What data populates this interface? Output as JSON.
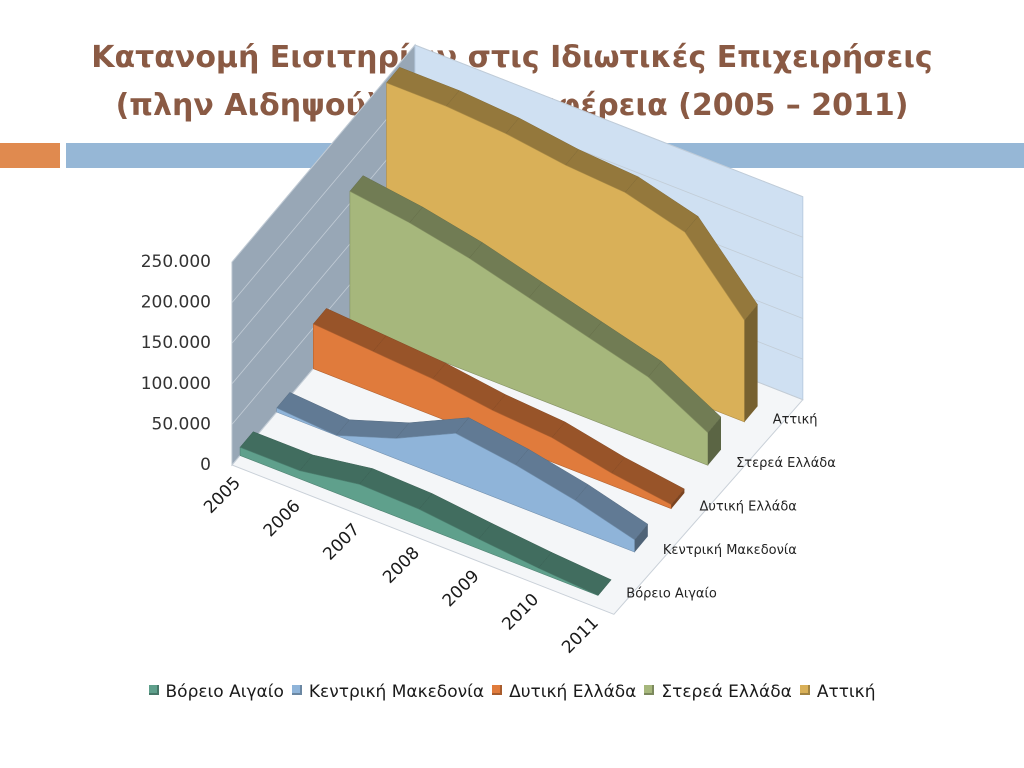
{
  "title": {
    "line1": "Κατανομή Εισιτηρίων στις Ιδιωτικές Επιχειρήσεις",
    "line2": "(πλην Αιδηψού) κατά Περιφέρεια (2005 – 2011)"
  },
  "chart_data": {
    "type": "area",
    "subtype": "3d-area",
    "categories": [
      "2005",
      "2006",
      "2007",
      "2008",
      "2009",
      "2010",
      "2011"
    ],
    "ylim": [
      0,
      250000
    ],
    "yticks": [
      0,
      50000,
      100000,
      150000,
      200000,
      250000
    ],
    "ytick_labels": [
      "0",
      "50.000",
      "100.000",
      "150.000",
      "200.000",
      "250.000"
    ],
    "grid": true,
    "legend_position": "bottom",
    "series": [
      {
        "name": "Βόρειο Αιγαίο",
        "color": "#5fa08c",
        "values": [
          10000,
          10000,
          22000,
          20000,
          12000,
          5000,
          0
        ]
      },
      {
        "name": "Κεντρική Μακεδονία",
        "color": "#8fb4d9",
        "values": [
          5000,
          0,
          25000,
          60000,
          50000,
          35000,
          15000
        ]
      },
      {
        "name": "Δυτική Ελλάδα",
        "color": "#e07b3c",
        "values": [
          55000,
          50000,
          45000,
          35000,
          30000,
          15000,
          5000
        ]
      },
      {
        "name": "Στερεά Ελλάδα",
        "color": "#a6b77c",
        "values": [
          165000,
          155000,
          140000,
          120000,
          100000,
          80000,
          40000
        ]
      },
      {
        "name": "Αττική",
        "color": "#d9b058",
        "values": [
          245000,
          245000,
          240000,
          230000,
          225000,
          205000,
          125000
        ]
      }
    ]
  }
}
